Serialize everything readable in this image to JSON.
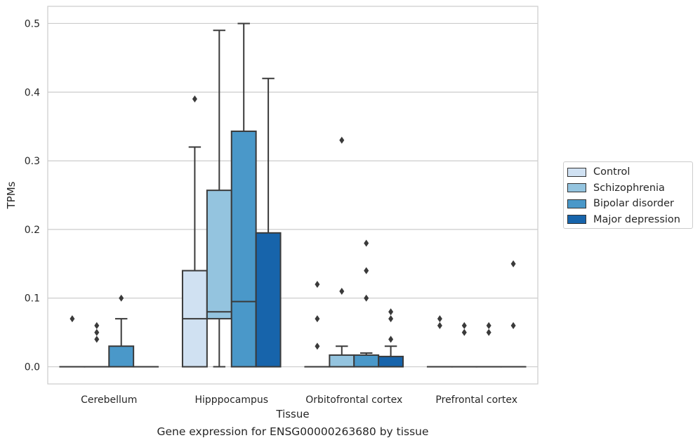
{
  "chart_data": {
    "type": "box",
    "xlabel": "Tissue",
    "ylabel": "TPMs",
    "caption": "Gene expression for ENSG00000263680 by tissue",
    "ylim": [
      -0.025,
      0.525
    ],
    "yticks": [
      "0.0",
      "0.1",
      "0.2",
      "0.3",
      "0.4",
      "0.5"
    ],
    "grid": "horizontal",
    "legend_position": "right",
    "categories": [
      "Cerebellum",
      "Hipppocampus",
      "Orbitofrontal cortex",
      "Prefrontal cortex"
    ],
    "series": [
      {
        "name": "Control",
        "color": "#d0e1f2",
        "boxes": [
          {
            "q1": 0,
            "median": 0,
            "q3": 0,
            "whisker_low": 0,
            "whisker_high": 0,
            "outliers": [
              0.07
            ]
          },
          {
            "q1": 0,
            "median": 0.07,
            "q3": 0.14,
            "whisker_low": 0,
            "whisker_high": 0.32,
            "outliers": [
              0.39
            ]
          },
          {
            "q1": 0,
            "median": 0,
            "q3": 0,
            "whisker_low": 0,
            "whisker_high": 0,
            "outliers": [
              0.03,
              0.07,
              0.12
            ]
          },
          {
            "q1": 0,
            "median": 0,
            "q3": 0,
            "whisker_low": 0,
            "whisker_high": 0,
            "outliers": [
              0.06,
              0.07
            ]
          }
        ]
      },
      {
        "name": "Schizophrenia",
        "color": "#94c4df",
        "boxes": [
          {
            "q1": 0,
            "median": 0,
            "q3": 0,
            "whisker_low": 0,
            "whisker_high": 0,
            "outliers": [
              0.04,
              0.05,
              0.06
            ]
          },
          {
            "q1": 0.07,
            "median": 0.08,
            "q3": 0.257,
            "whisker_low": 0,
            "whisker_high": 0.49,
            "outliers": []
          },
          {
            "q1": 0,
            "median": 0,
            "q3": 0.017,
            "whisker_low": 0,
            "whisker_high": 0.03,
            "outliers": [
              0.11,
              0.33
            ]
          },
          {
            "q1": 0,
            "median": 0,
            "q3": 0,
            "whisker_low": 0,
            "whisker_high": 0,
            "outliers": [
              0.05,
              0.06
            ]
          }
        ]
      },
      {
        "name": "Bipolar disorder",
        "color": "#4a98c9",
        "boxes": [
          {
            "q1": 0,
            "median": 0,
            "q3": 0.03,
            "whisker_low": 0,
            "whisker_high": 0.07,
            "outliers": [
              0.1
            ]
          },
          {
            "q1": 0,
            "median": 0.095,
            "q3": 0.343,
            "whisker_low": 0,
            "whisker_high": 0.5,
            "outliers": []
          },
          {
            "q1": 0,
            "median": 0,
            "q3": 0.017,
            "whisker_low": 0,
            "whisker_high": 0.02,
            "outliers": [
              0.1,
              0.14,
              0.18
            ]
          },
          {
            "q1": 0,
            "median": 0,
            "q3": 0,
            "whisker_low": 0,
            "whisker_high": 0,
            "outliers": [
              0.05,
              0.06
            ]
          }
        ]
      },
      {
        "name": "Major depression",
        "color": "#1764ab",
        "boxes": [
          {
            "q1": 0,
            "median": 0,
            "q3": 0,
            "whisker_low": 0,
            "whisker_high": 0,
            "outliers": []
          },
          {
            "q1": 0,
            "median": 0,
            "q3": 0.195,
            "whisker_low": 0,
            "whisker_high": 0.42,
            "outliers": []
          },
          {
            "q1": 0,
            "median": 0,
            "q3": 0.015,
            "whisker_low": 0,
            "whisker_high": 0.03,
            "outliers": [
              0.04,
              0.07,
              0.08
            ]
          },
          {
            "q1": 0,
            "median": 0,
            "q3": 0,
            "whisker_low": 0,
            "whisker_high": 0,
            "outliers": [
              0.06,
              0.15
            ]
          }
        ]
      }
    ]
  }
}
